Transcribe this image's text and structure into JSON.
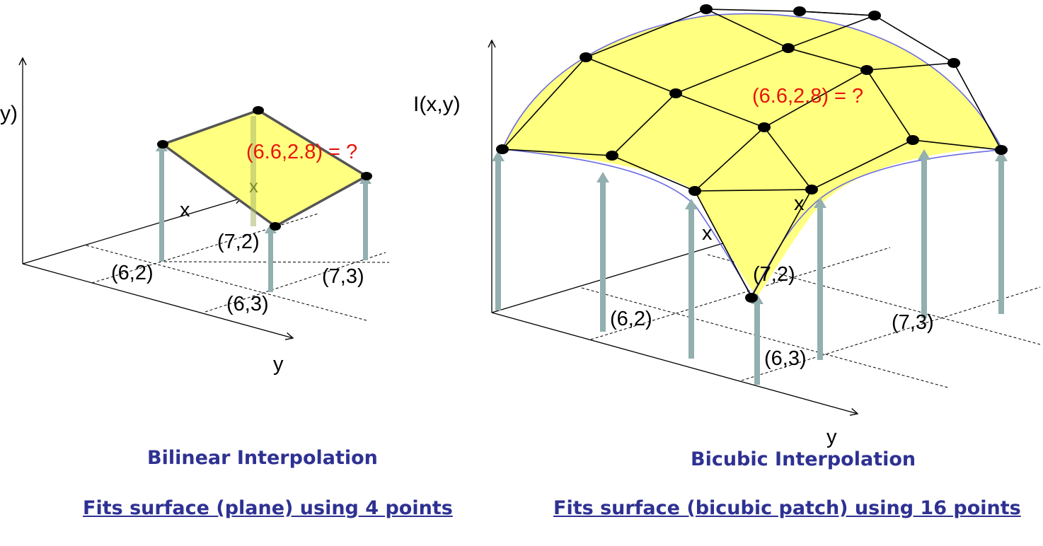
{
  "bilinear": {
    "axis_label_y_partial": "y)",
    "axis_label_x": "x",
    "axis_label_y": "y",
    "inner_x_label": "x",
    "query_label": "(6.6,2.8) = ?",
    "points": [
      "(6,2)",
      "(7,2)",
      "(6,3)",
      "(7,3)"
    ],
    "title": "Bilinear Interpolation",
    "subtitle": "Fits surface (plane) using 4 points"
  },
  "bicubic": {
    "axis_label_z": "I(x,y)",
    "axis_label_x": "x",
    "axis_label_y": "y",
    "inner_x_label": "x",
    "query_label": "(6.6,2.8) = ?",
    "points": [
      "(6,2)",
      "(7,2)",
      "(6,3)",
      "(7,3)"
    ],
    "title": "Bicubic Interpolation",
    "subtitle": "Fits surface (bicubic patch) using 16 points"
  },
  "colors": {
    "surface_fill": "#FFFF80",
    "query_text": "#E8140C",
    "caption_text": "#2E3192",
    "arrow_gray": "#93AFAF",
    "edge_gray": "#555555",
    "curve_blue": "#6B6BE0"
  }
}
